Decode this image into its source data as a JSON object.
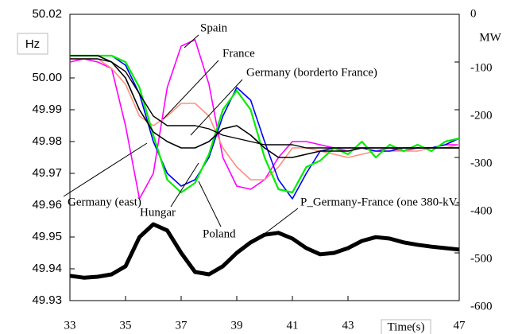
{
  "chart_data": {
    "type": "line",
    "x": [
      33,
      33.5,
      34,
      34.5,
      35,
      35.5,
      36,
      36.5,
      37,
      37.5,
      38,
      38.5,
      39,
      39.5,
      40,
      40.5,
      41,
      41.5,
      42,
      42.5,
      43,
      43.5,
      44,
      44.5,
      45,
      45.5,
      46,
      46.5,
      47
    ],
    "xlim": [
      33,
      47
    ],
    "xticks": [
      33,
      35,
      37,
      39,
      41,
      43,
      47
    ],
    "ylim": [
      49.93,
      50.02
    ],
    "yticks": [
      50.02,
      {
        "value": 50,
        "label": "50.00"
      },
      49.99,
      49.98,
      49.97,
      49.96,
      49.95,
      49.94,
      49.93
    ],
    "y2lim": [
      -600,
      0
    ],
    "y2ticks": [
      0,
      -100,
      -200,
      -300,
      -400,
      -500,
      -600
    ],
    "ylabel": "Hz",
    "y2label": "MW",
    "xlabel": "Time(s)",
    "series": [
      {
        "name": "Spain",
        "color": "#ff00ff",
        "values": [
          50.005,
          50.006,
          50.005,
          50.003,
          49.985,
          49.962,
          49.97,
          49.997,
          50.01,
          50.012,
          49.998,
          49.975,
          49.966,
          49.965,
          49.968,
          49.975,
          49.98,
          49.98,
          49.979,
          49.978,
          49.977,
          49.978,
          49.977,
          49.978,
          49.977,
          49.978,
          49.978,
          49.979,
          49.979
        ]
      },
      {
        "name": "France",
        "color": "#ff9080",
        "values": [
          50.006,
          50.006,
          50.006,
          50.003,
          49.998,
          49.988,
          49.985,
          49.988,
          49.992,
          49.992,
          49.988,
          49.978,
          49.972,
          49.968,
          49.968,
          49.972,
          49.978,
          49.978,
          49.977,
          49.976,
          49.975,
          49.976,
          49.977,
          49.977,
          49.977,
          49.977,
          49.978,
          49.978,
          49.979
        ]
      },
      {
        "name": "Germany (borderto France)",
        "color": "#0000ff",
        "values": [
          50.007,
          50.007,
          50.007,
          50.007,
          50.004,
          49.995,
          49.98,
          49.97,
          49.966,
          49.968,
          49.975,
          49.988,
          49.997,
          49.993,
          49.98,
          49.968,
          49.962,
          49.97,
          49.977,
          49.978,
          49.978,
          49.978,
          49.977,
          49.977,
          49.978,
          49.978,
          49.978,
          49.979,
          49.981
        ]
      },
      {
        "name": "Poland",
        "color": "#00ee00",
        "values": [
          50.007,
          50.007,
          50.007,
          50.007,
          50.005,
          49.997,
          49.982,
          49.968,
          49.964,
          49.967,
          49.976,
          49.99,
          49.996,
          49.99,
          49.975,
          49.965,
          49.964,
          49.972,
          49.974,
          49.978,
          49.976,
          49.98,
          49.975,
          49.979,
          49.977,
          49.979,
          49.977,
          49.98,
          49.981
        ]
      },
      {
        "name": "Germany (east)",
        "color": "#000000",
        "values": [
          50.007,
          50.007,
          50.007,
          50.005,
          50.0,
          49.99,
          49.983,
          49.98,
          49.978,
          49.978,
          49.98,
          49.984,
          49.985,
          49.982,
          49.978,
          49.975,
          49.975,
          49.976,
          49.977,
          49.977,
          49.977,
          49.978,
          49.978,
          49.978,
          49.978,
          49.978,
          49.978,
          49.978,
          49.978
        ]
      },
      {
        "name": "Hungar",
        "color": "#000000",
        "values": [
          50.006,
          50.006,
          50.006,
          50.005,
          50.002,
          49.995,
          49.988,
          49.985,
          49.985,
          49.985,
          49.984,
          49.982,
          49.981,
          49.98,
          49.979,
          49.979,
          49.979,
          49.978,
          49.978,
          49.978,
          49.978,
          49.978,
          49.978,
          49.978,
          49.978,
          49.978,
          49.978,
          49.978,
          49.978
        ]
      },
      {
        "name": "P_Germany-France (one 380-kV-",
        "color": "#000000",
        "axis": "y2",
        "values": [
          -548,
          -552,
          -550,
          -545,
          -528,
          -467,
          -440,
          -453,
          -500,
          -540,
          -545,
          -528,
          -500,
          -478,
          -462,
          -458,
          -470,
          -490,
          -503,
          -500,
          -490,
          -475,
          -467,
          -470,
          -478,
          -483,
          -487,
          -490,
          -493
        ]
      }
    ]
  }
}
